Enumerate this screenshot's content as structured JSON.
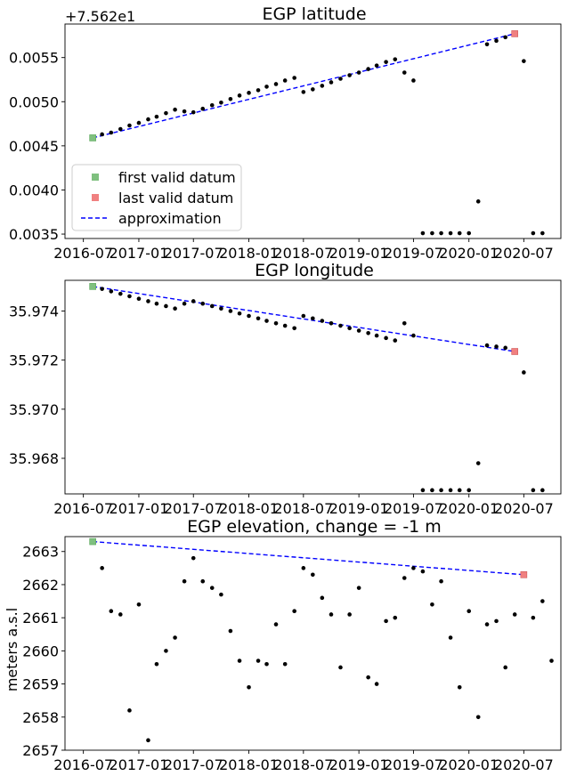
{
  "chart_data": [
    {
      "type": "scatter",
      "title": "EGP latitude",
      "offset_text": "+7.562e1",
      "ylabel": "",
      "xlim": [
        "2016-05-01",
        "2020-11-01"
      ],
      "ylim": [
        0.00345,
        0.00588
      ],
      "yticks": [
        0.0035,
        0.004,
        0.0045,
        0.005,
        0.0055
      ],
      "ytick_labels": [
        "0.0035",
        "0.0040",
        "0.0045",
        "0.0050",
        "0.0055"
      ],
      "xticks": [
        "2016-07-01",
        "2017-01-01",
        "2017-07-01",
        "2018-01-01",
        "2018-07-01",
        "2019-01-01",
        "2019-07-01",
        "2020-01-01",
        "2020-07-01"
      ],
      "xtick_labels": [
        "2016-07",
        "2017-01",
        "2017-07",
        "2018-01",
        "2018-07",
        "2019-01",
        "2019-07",
        "2020-01",
        "2020-07"
      ],
      "legend": {
        "placement": "lower-left",
        "entries": [
          {
            "label": "first valid datum",
            "kind": "square",
            "color": "#7fc07f"
          },
          {
            "label": "last valid datum",
            "kind": "square",
            "color": "#f08080"
          },
          {
            "label": "approximation",
            "kind": "dashed",
            "color": "#0000ff"
          }
        ]
      },
      "points": [
        [
          "2016-08-01",
          0.00459
        ],
        [
          "2016-09-01",
          0.00463
        ],
        [
          "2016-10-01",
          0.00465
        ],
        [
          "2016-11-01",
          0.00469
        ],
        [
          "2016-12-01",
          0.00473
        ],
        [
          "2017-01-01",
          0.00476
        ],
        [
          "2017-02-01",
          0.0048
        ],
        [
          "2017-03-01",
          0.00483
        ],
        [
          "2017-04-01",
          0.00487
        ],
        [
          "2017-05-01",
          0.00491
        ],
        [
          "2017-06-01",
          0.00489
        ],
        [
          "2017-07-01",
          0.00488
        ],
        [
          "2017-08-01",
          0.00492
        ],
        [
          "2017-09-01",
          0.00496
        ],
        [
          "2017-10-01",
          0.00499
        ],
        [
          "2017-11-01",
          0.00503
        ],
        [
          "2017-12-01",
          0.00507
        ],
        [
          "2018-01-01",
          0.0051
        ],
        [
          "2018-02-01",
          0.00513
        ],
        [
          "2018-03-01",
          0.00517
        ],
        [
          "2018-04-01",
          0.0052
        ],
        [
          "2018-05-01",
          0.00524
        ],
        [
          "2018-06-01",
          0.00527
        ],
        [
          "2018-07-01",
          0.00511
        ],
        [
          "2018-08-01",
          0.00514
        ],
        [
          "2018-09-01",
          0.00518
        ],
        [
          "2018-10-01",
          0.00522
        ],
        [
          "2018-11-01",
          0.00526
        ],
        [
          "2018-12-01",
          0.0053
        ],
        [
          "2019-01-01",
          0.00533
        ],
        [
          "2019-02-01",
          0.00537
        ],
        [
          "2019-03-01",
          0.00541
        ],
        [
          "2019-04-01",
          0.00545
        ],
        [
          "2019-05-01",
          0.00548
        ],
        [
          "2019-06-01",
          0.00533
        ],
        [
          "2019-07-01",
          0.00524
        ],
        [
          "2019-08-01",
          0.00351
        ],
        [
          "2019-09-01",
          0.00351
        ],
        [
          "2019-10-01",
          0.00351
        ],
        [
          "2019-11-01",
          0.00351
        ],
        [
          "2019-12-01",
          0.00351
        ],
        [
          "2020-01-01",
          0.00351
        ],
        [
          "2020-02-01",
          0.00387
        ],
        [
          "2020-03-01",
          0.00565
        ],
        [
          "2020-04-01",
          0.00569
        ],
        [
          "2020-05-01",
          0.00573
        ],
        [
          "2020-06-01",
          0.00577
        ],
        [
          "2020-07-01",
          0.00546
        ],
        [
          "2020-08-01",
          0.00351
        ],
        [
          "2020-09-01",
          0.00351
        ]
      ],
      "first": [
        "2016-08-01",
        0.00459
      ],
      "last": [
        "2020-06-01",
        0.00577
      ],
      "approx": [
        [
          "2016-08-01",
          0.00459
        ],
        [
          "2020-06-01",
          0.00577
        ]
      ]
    },
    {
      "type": "scatter",
      "title": "EGP longitude",
      "offset_text": "",
      "ylabel": "",
      "xlim": [
        "2016-05-01",
        "2020-11-01"
      ],
      "ylim": [
        35.96655,
        35.97525
      ],
      "yticks": [
        35.968,
        35.97,
        35.972,
        35.974
      ],
      "ytick_labels": [
        "35.968",
        "35.970",
        "35.972",
        "35.974"
      ],
      "xticks": [
        "2016-07-01",
        "2017-01-01",
        "2017-07-01",
        "2018-01-01",
        "2018-07-01",
        "2019-01-01",
        "2019-07-01",
        "2020-01-01",
        "2020-07-01"
      ],
      "xtick_labels": [
        "2016-07",
        "2017-01",
        "2017-07",
        "2018-01",
        "2018-07",
        "2019-01",
        "2019-07",
        "2020-01",
        "2020-07"
      ],
      "points": [
        [
          "2016-08-01",
          35.975
        ],
        [
          "2016-09-01",
          35.9749
        ],
        [
          "2016-10-01",
          35.9748
        ],
        [
          "2016-11-01",
          35.9747
        ],
        [
          "2016-12-01",
          35.9746
        ],
        [
          "2017-01-01",
          35.9745
        ],
        [
          "2017-02-01",
          35.9744
        ],
        [
          "2017-03-01",
          35.9743
        ],
        [
          "2017-04-01",
          35.9742
        ],
        [
          "2017-05-01",
          35.9741
        ],
        [
          "2017-06-01",
          35.9743
        ],
        [
          "2017-07-01",
          35.9744
        ],
        [
          "2017-08-01",
          35.9743
        ],
        [
          "2017-09-01",
          35.9742
        ],
        [
          "2017-10-01",
          35.9741
        ],
        [
          "2017-11-01",
          35.974
        ],
        [
          "2017-12-01",
          35.9739
        ],
        [
          "2018-01-01",
          35.9738
        ],
        [
          "2018-02-01",
          35.9737
        ],
        [
          "2018-03-01",
          35.9736
        ],
        [
          "2018-04-01",
          35.9735
        ],
        [
          "2018-05-01",
          35.9734
        ],
        [
          "2018-06-01",
          35.9733
        ],
        [
          "2018-07-01",
          35.9738
        ],
        [
          "2018-08-01",
          35.9737
        ],
        [
          "2018-09-01",
          35.9736
        ],
        [
          "2018-10-01",
          35.9735
        ],
        [
          "2018-11-01",
          35.9734
        ],
        [
          "2018-12-01",
          35.9733
        ],
        [
          "2019-01-01",
          35.9732
        ],
        [
          "2019-02-01",
          35.9731
        ],
        [
          "2019-03-01",
          35.973
        ],
        [
          "2019-04-01",
          35.9729
        ],
        [
          "2019-05-01",
          35.9728
        ],
        [
          "2019-06-01",
          35.9735
        ],
        [
          "2019-07-01",
          35.973
        ],
        [
          "2019-08-01",
          35.9667
        ],
        [
          "2019-09-01",
          35.9667
        ],
        [
          "2019-10-01",
          35.9667
        ],
        [
          "2019-11-01",
          35.9667
        ],
        [
          "2019-12-01",
          35.9667
        ],
        [
          "2020-01-01",
          35.9667
        ],
        [
          "2020-02-01",
          35.9678
        ],
        [
          "2020-03-01",
          35.9726
        ],
        [
          "2020-04-01",
          35.97255
        ],
        [
          "2020-05-01",
          35.9725
        ],
        [
          "2020-06-01",
          35.97235
        ],
        [
          "2020-07-01",
          35.9715
        ],
        [
          "2020-08-01",
          35.9667
        ],
        [
          "2020-09-01",
          35.9667
        ]
      ],
      "first": [
        "2016-08-01",
        35.975
      ],
      "last": [
        "2020-06-01",
        35.97235
      ],
      "approx": [
        [
          "2016-08-01",
          35.975
        ],
        [
          "2020-06-01",
          35.97235
        ]
      ]
    },
    {
      "type": "scatter",
      "title": "EGP elevation, change = -1 m",
      "offset_text": "",
      "ylabel": "meters a.s.l",
      "xlim": [
        "2016-05-01",
        "2020-11-01"
      ],
      "ylim": [
        2657,
        2663.45
      ],
      "yticks": [
        2657,
        2658,
        2659,
        2660,
        2661,
        2662,
        2663
      ],
      "ytick_labels": [
        "2657",
        "2658",
        "2659",
        "2660",
        "2661",
        "2662",
        "2663"
      ],
      "xticks": [
        "2016-07-01",
        "2017-01-01",
        "2017-07-01",
        "2018-01-01",
        "2018-07-01",
        "2019-01-01",
        "2019-07-01",
        "2020-01-01",
        "2020-07-01"
      ],
      "xtick_labels": [
        "2016-07",
        "2017-01",
        "2017-07",
        "2018-01",
        "2018-07",
        "2019-01",
        "2019-07",
        "2020-01",
        "2020-07"
      ],
      "points": [
        [
          "2016-08-01",
          2663.3
        ],
        [
          "2016-09-01",
          2662.5
        ],
        [
          "2016-10-01",
          2661.2
        ],
        [
          "2016-11-01",
          2661.1
        ],
        [
          "2016-12-01",
          2658.2
        ],
        [
          "2017-01-01",
          2661.4
        ],
        [
          "2017-02-01",
          2657.3
        ],
        [
          "2017-03-01",
          2659.6
        ],
        [
          "2017-04-01",
          2660.0
        ],
        [
          "2017-05-01",
          2660.4
        ],
        [
          "2017-06-01",
          2662.1
        ],
        [
          "2017-07-01",
          2662.8
        ],
        [
          "2017-08-01",
          2662.1
        ],
        [
          "2017-09-01",
          2661.9
        ],
        [
          "2017-10-01",
          2661.7
        ],
        [
          "2017-11-01",
          2660.6
        ],
        [
          "2017-12-01",
          2659.7
        ],
        [
          "2018-01-01",
          2658.9
        ],
        [
          "2018-02-01",
          2659.7
        ],
        [
          "2018-03-01",
          2659.6
        ],
        [
          "2018-04-01",
          2660.8
        ],
        [
          "2018-05-01",
          2659.6
        ],
        [
          "2018-06-01",
          2661.2
        ],
        [
          "2018-07-01",
          2662.5
        ],
        [
          "2018-08-01",
          2662.3
        ],
        [
          "2018-09-01",
          2661.6
        ],
        [
          "2018-10-01",
          2661.1
        ],
        [
          "2018-11-01",
          2659.5
        ],
        [
          "2018-12-01",
          2661.1
        ],
        [
          "2019-01-01",
          2661.9
        ],
        [
          "2019-02-01",
          2659.2
        ],
        [
          "2019-03-01",
          2659.0
        ],
        [
          "2019-04-01",
          2660.9
        ],
        [
          "2019-05-01",
          2661.0
        ],
        [
          "2019-06-01",
          2662.2
        ],
        [
          "2019-07-01",
          2662.5
        ],
        [
          "2019-08-01",
          2662.4
        ],
        [
          "2019-09-01",
          2661.4
        ],
        [
          "2019-10-01",
          2662.1
        ],
        [
          "2019-11-01",
          2660.4
        ],
        [
          "2019-12-01",
          2658.9
        ],
        [
          "2020-01-01",
          2661.2
        ],
        [
          "2020-02-01",
          2658.0
        ],
        [
          "2020-03-01",
          2660.8
        ],
        [
          "2020-04-01",
          2660.9
        ],
        [
          "2020-05-01",
          2659.5
        ],
        [
          "2020-06-01",
          2661.1
        ],
        [
          "2020-07-01",
          2662.3
        ],
        [
          "2020-08-01",
          2661.0
        ],
        [
          "2020-09-01",
          2661.5
        ],
        [
          "2020-10-01",
          2659.7
        ]
      ],
      "first": [
        "2016-08-01",
        2663.3
      ],
      "last": [
        "2020-07-01",
        2662.3
      ],
      "approx": [
        [
          "2016-08-01",
          2663.3
        ],
        [
          "2020-07-01",
          2662.3
        ]
      ]
    }
  ]
}
